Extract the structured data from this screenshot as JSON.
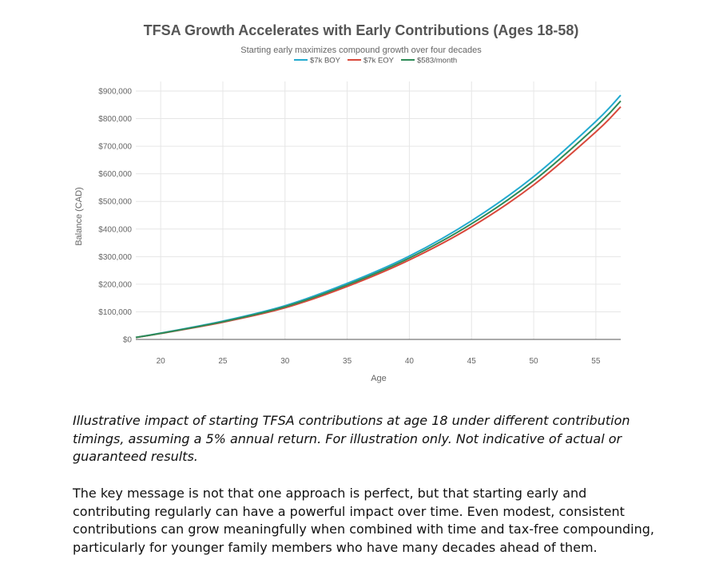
{
  "chart_data": {
    "type": "line",
    "title": "TFSA Growth Accelerates with Early Contributions (Ages 18-58)",
    "subtitle": "Starting early maximizes compound growth over four decades",
    "xlabel": "Age",
    "ylabel": "Balance (CAD)",
    "xlim": [
      18,
      57
    ],
    "ylim": [
      0,
      900000
    ],
    "x_ticks": [
      20,
      25,
      30,
      35,
      40,
      45,
      50,
      55
    ],
    "y_ticks": [
      0,
      100000,
      200000,
      300000,
      400000,
      500000,
      600000,
      700000,
      800000,
      900000
    ],
    "y_tick_labels": [
      "$0",
      "$100,000",
      "$200,000",
      "$300,000",
      "$400,000",
      "$500,000",
      "$600,000",
      "$700,000",
      "$800,000",
      "$900,000"
    ],
    "grid": true,
    "legend_position": "top-center",
    "x": [
      18,
      20,
      25,
      30,
      35,
      40,
      45,
      50,
      55,
      57
    ],
    "series": [
      {
        "name": "$7k BOY",
        "color": "#22aacf",
        "values": [
          7350,
          22700,
          66400,
          122200,
          203000,
          302000,
          430000,
          590000,
          790000,
          885000
        ]
      },
      {
        "name": "$7k EOY",
        "color": "#d9483b",
        "values": [
          7000,
          21500,
          62300,
          114400,
          192000,
          288000,
          408000,
          560000,
          752000,
          843000
        ]
      },
      {
        "name": "$583/month",
        "color": "#2e8b57",
        "values": [
          7150,
          22050,
          64200,
          118500,
          197500,
          295000,
          419000,
          575000,
          771000,
          864000
        ]
      }
    ]
  },
  "caption": {
    "italic": "Illustrative impact of starting TFSA contributions at age 18 under different contribution timings, assuming a 5% annual return. For illustration only. Not indicative of actual or guaranteed results.",
    "body": "The key message is not that one approach is perfect, but that starting early and contributing regularly can have a powerful impact over time. Even modest, consistent contributions can grow meaningfully when combined with time and tax-free compounding, particularly for younger family members who have many decades ahead of them."
  }
}
